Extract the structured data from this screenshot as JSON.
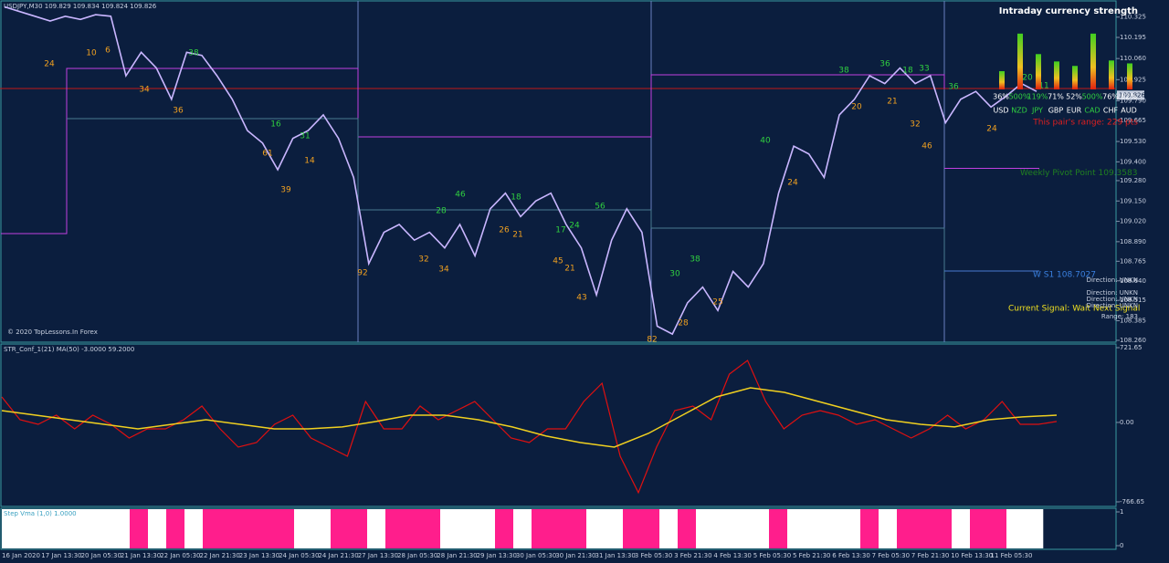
{
  "chart_data": [
    {
      "type": "line",
      "title": "USDJPY,M30 109.829 109.834 109.824 109.826",
      "color": "#c9b6ff",
      "values": [
        110.39,
        110.36,
        110.33,
        110.3,
        110.33,
        110.31,
        110.34,
        110.33,
        109.95,
        110.1,
        110.0,
        109.8,
        110.1,
        110.08,
        109.95,
        109.8,
        109.6,
        109.52,
        109.35,
        109.55,
        109.6,
        109.7,
        109.55,
        109.3,
        108.75,
        108.95,
        109.0,
        108.9,
        108.95,
        108.85,
        109.0,
        108.8,
        109.1,
        109.2,
        109.05,
        109.15,
        109.2,
        109.0,
        108.85,
        108.55,
        108.9,
        109.1,
        108.95,
        108.35,
        108.3,
        108.5,
        108.6,
        108.45,
        108.7,
        108.6,
        108.75,
        109.2,
        109.5,
        109.45,
        109.3,
        109.7,
        109.8,
        109.95,
        109.9,
        110.0,
        109.9,
        109.95,
        109.65,
        109.8,
        109.85,
        109.75,
        109.82,
        109.9,
        109.85
      ],
      "ylim": [
        108.248,
        110.434
      ],
      "yticks": [
        110.325,
        110.195,
        {
          "value": 110.06,
          "label": "110.060"
        },
        109.925,
        {
          "value": 109.79,
          "label": "109.790"
        },
        109.665,
        {
          "value": 109.53,
          "label": "109.530"
        },
        {
          "value": 109.4,
          "label": "109.400"
        },
        {
          "value": 109.28,
          "label": "109.280"
        },
        {
          "value": 109.15,
          "label": "109.150"
        },
        {
          "value": 109.02,
          "label": "109.020"
        },
        {
          "value": 108.89,
          "label": "108.890"
        },
        108.765,
        {
          "value": 108.64,
          "label": "108.640"
        },
        108.515,
        108.385,
        {
          "value": 108.26,
          "label": "108.260"
        }
      ],
      "last_price": {
        "value": 109.826,
        "label": "109.826"
      },
      "sell_labels": [
        "24",
        "10",
        "6",
        "34",
        "36",
        "61",
        "14",
        "39",
        "92",
        "32",
        "34",
        "26",
        "21",
        "45",
        "21",
        "43",
        "82",
        "28",
        "25",
        "24",
        "20",
        "21",
        "32",
        "46",
        "24"
      ],
      "buy_labels": [
        "38",
        "16",
        "31",
        "28",
        "46",
        "18",
        "17",
        "24",
        "56",
        "30",
        "38",
        "40",
        "38",
        "36",
        "18",
        "33",
        "36",
        "20",
        "11"
      ],
      "weekly_pivot": {
        "value": 109.3583,
        "label": "Weekly Pivot Point  109.3583"
      },
      "weekly_s1": {
        "value": 108.7027,
        "label": "W S1  108.7027"
      },
      "copyright": "© 2020 TopLessons.In Forex",
      "current_signal": "Current Signal: Wait Next Signal",
      "direction_labels": [
        "Direction: UNKN",
        "Direction: UNKN",
        "Direction: UNKN",
        "Direction: UNKN"
      ],
      "range_label": "Range: 183"
    },
    {
      "type": "strength",
      "title": "Intraday currency strength",
      "categories": [
        "USD",
        "NZD",
        "JPY",
        "GBP",
        "EUR",
        "CAD",
        "CHF",
        "AUD"
      ],
      "values": [
        36,
        500,
        119,
        71,
        52,
        500,
        76,
        62
      ],
      "value_labels": [
        "36%",
        "500%",
        "119%",
        "71%",
        "52%",
        "500%",
        "76%",
        "62%"
      ],
      "log_scale": true,
      "ylim": [
        10,
        1000
      ],
      "range_note": "This pair's range: 229 pts"
    },
    {
      "type": "line",
      "title": "STR_Conf_1(21) MA(50) -3.0000 59.2000",
      "series": [
        {
          "color": "#e01010",
          "values": [
            246,
            26,
            -18,
            70,
            -62,
            70,
            -18,
            -150,
            -62,
            -62,
            26,
            158,
            -62,
            -238,
            -194,
            -18,
            70,
            -150,
            -238,
            -326,
            202,
            -62,
            -62,
            158,
            26,
            114,
            202,
            26,
            -150,
            -194,
            -62,
            -62,
            202,
            378,
            -326,
            -678,
            -238,
            114,
            158,
            26,
            466,
            598,
            202,
            -62,
            70,
            114,
            70,
            -18,
            26,
            -62,
            -150,
            -62,
            70,
            -62,
            26,
            202,
            -18,
            -18,
            9
          ]
        },
        {
          "color": "#f0d020",
          "values": [
            114,
            70,
            26,
            -18,
            -62,
            -18,
            26,
            -18,
            -62,
            -62,
            -44,
            9,
            70,
            70,
            26,
            -44,
            -132,
            -194,
            -238,
            -106,
            70,
            246,
            334,
            290,
            202,
            114,
            26,
            -18,
            -44,
            26,
            53,
            70
          ]
        }
      ],
      "ylim": [
        -766.65,
        721.65
      ],
      "yticks": [
        721.65,
        {
          "value": 0,
          "label": "0.00"
        },
        -766.65
      ]
    },
    {
      "type": "state",
      "title": "Step Vma (1,0) 1.0000",
      "up_color": "#ff1e8c",
      "down_color": "#ffffff",
      "values": [
        0,
        0,
        0,
        0,
        0,
        0,
        0,
        1,
        0,
        1,
        0,
        1,
        1,
        1,
        1,
        1,
        0,
        0,
        1,
        1,
        0,
        1,
        1,
        1,
        0,
        0,
        0,
        1,
        0,
        1,
        1,
        1,
        0,
        0,
        1,
        1,
        0,
        1,
        0,
        0,
        0,
        0,
        1,
        0,
        0,
        0,
        0,
        1,
        0,
        1,
        1,
        1,
        0,
        1,
        1,
        0,
        0
      ],
      "ylim": [
        0,
        1
      ],
      "yticks": [
        1,
        0
      ]
    }
  ],
  "time_axis": [
    "16 Jan 2020",
    "17 Jan 13:30",
    "20 Jan 05:30",
    "21 Jan 13:30",
    "22 Jan 05:30",
    "22 Jan 21:30",
    "23 Jan 13:30",
    "24 Jan 05:30",
    "24 Jan 21:30",
    "27 Jan 13:30",
    "28 Jan 05:30",
    "28 Jan 21:30",
    "29 Jan 13:30",
    "30 Jan 05:30",
    "30 Jan 21:30",
    "31 Jan 13:30",
    "3 Feb 05:30",
    "3 Feb 21:30",
    "4 Feb 13:30",
    "5 Feb 05:30",
    "5 Feb 21:30",
    "6 Feb 13:30",
    "7 Feb 05:30",
    "7 Feb 21:30",
    "10 Feb 13:30",
    "11 Feb 05:30"
  ]
}
